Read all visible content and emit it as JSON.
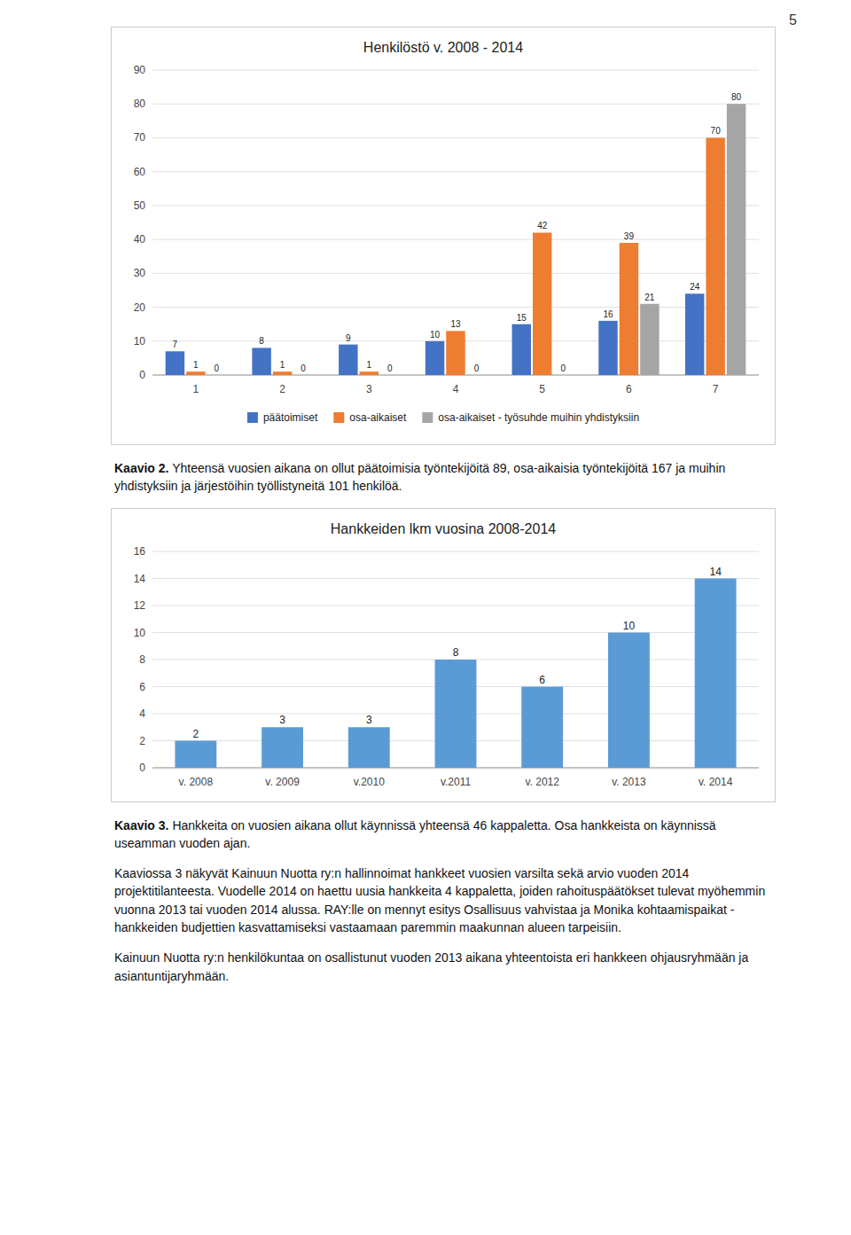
{
  "chart_data": [
    {
      "type": "bar",
      "title": "Henkilöstö v. 2008 - 2014",
      "categories": [
        "1",
        "2",
        "3",
        "4",
        "5",
        "6",
        "7"
      ],
      "series": [
        {
          "name": "päätoimiset",
          "color": "#4472C4",
          "values": [
            7,
            8,
            9,
            10,
            15,
            16,
            24
          ]
        },
        {
          "name": "osa-aikaiset",
          "color": "#ED7D31",
          "values": [
            1,
            1,
            1,
            13,
            42,
            39,
            70
          ]
        },
        {
          "name": "osa-aikaiset - työsuhde muihin yhdistyksiin",
          "color": "#A5A5A5",
          "values": [
            0,
            0,
            0,
            0,
            0,
            21,
            80
          ]
        }
      ],
      "ylim": [
        0,
        90
      ],
      "yticks": [
        0,
        10,
        20,
        30,
        40,
        50,
        60,
        70,
        80,
        90
      ],
      "grid": true,
      "legend": "bottom",
      "data_labels": true
    },
    {
      "type": "bar",
      "title": "Hankkeiden lkm vuosina 2008-2014",
      "categories": [
        "v. 2008",
        "v. 2009",
        "v.2010",
        "v.2011",
        "v. 2012",
        "v. 2013",
        "v. 2014"
      ],
      "values": [
        2,
        3,
        3,
        8,
        6,
        10,
        14
      ],
      "color": "#5B9BD5",
      "ylim": [
        0,
        16
      ],
      "yticks": [
        0,
        2,
        4,
        6,
        8,
        10,
        12,
        14,
        16
      ],
      "grid": true,
      "data_labels": true
    }
  ],
  "paragraphs": [
    {
      "bold": "Kaavio 2.",
      "text": "Yhteensä vuosien aikana on ollut päätoimisia työntekijöitä 89, osa-aikaisia työntekijöitä 167 ja muihin yhdistyksiin ja järjestöihin työllistyneitä 101 henkilöä."
    },
    {
      "bold": "Kaavio 3.",
      "text": "Hankkeita on vuosien aikana ollut käynnissä yhteensä 46 kappaletta. Osa hankkeista on käynnissä useamman vuoden ajan."
    },
    {
      "text": "Kaaviossa 3 näkyvät Kainuun Nuotta ry:n hallinnoimat hankkeet vuosien varsilta sekä arvio vuoden 2014 projektitilanteesta. Vuodelle 2014 on haettu uusia hankkeita 4 kappaletta, joiden rahoituspäätökset tulevat myöhemmin vuonna 2013 tai vuoden 2014 alussa. RAY:lle on mennyt esitys Osallisuus vahvistaa ja Monika kohtaamispaikat -hankkeiden budjettien kasvattamiseksi vastaamaan paremmin maakunnan alueen tarpeisiin."
    },
    {
      "text": "Kainuun Nuotta ry:n henkilökuntaa on osallistunut vuoden 2013 aikana yhteentoista eri hankkeen ohjausryhmään ja asiantuntijaryhmään."
    }
  ],
  "page_number": "5"
}
